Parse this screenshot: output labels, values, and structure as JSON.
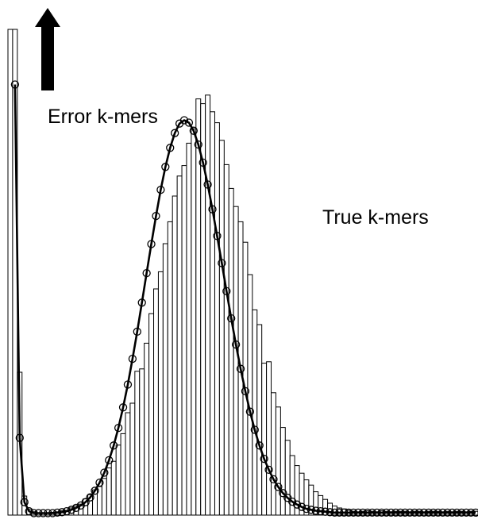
{
  "chart_data": {
    "type": "bar",
    "title": "",
    "xlabel": "",
    "ylabel": "",
    "axes_visible": false,
    "grid": false,
    "xlim": [
      0,
      100
    ],
    "ylim": [
      0,
      100
    ],
    "histogram": {
      "name": "",
      "x": [
        0,
        1,
        2,
        3,
        4,
        5,
        6,
        7,
        8,
        9,
        10,
        11,
        12,
        13,
        14,
        15,
        16,
        17,
        18,
        19,
        20,
        21,
        22,
        23,
        24,
        25,
        26,
        27,
        28,
        29,
        30,
        31,
        32,
        33,
        34,
        35,
        36,
        37,
        38,
        39,
        40,
        41,
        42,
        43,
        44,
        45,
        46,
        47,
        48,
        49,
        50,
        51,
        52,
        53,
        54,
        55,
        56,
        57,
        58,
        59,
        60,
        61,
        62,
        63,
        64,
        65,
        66,
        67,
        68,
        69,
        70,
        71,
        72,
        73,
        74,
        75,
        76,
        77,
        78,
        79,
        80,
        81,
        82,
        83,
        84,
        85,
        86,
        87,
        88,
        89,
        90,
        91,
        92,
        93,
        94,
        95,
        96,
        97,
        98,
        99
      ],
      "values": [
        102,
        102,
        30,
        4,
        1.2,
        0.7,
        0.5,
        0.5,
        0.5,
        0.6,
        0.7,
        0.9,
        1.0,
        1.5,
        1.9,
        2.3,
        3.4,
        4.3,
        5.3,
        6.0,
        7.7,
        9.9,
        11.3,
        14.7,
        17.1,
        21.5,
        23.5,
        30.2,
        30.7,
        36.1,
        42.3,
        47.5,
        51.1,
        57.0,
        61.6,
        67.0,
        71.2,
        73.4,
        78.1,
        81.1,
        87.4,
        86.4,
        88.2,
        84.7,
        82.4,
        78.7,
        73.6,
        68.6,
        64.8,
        61.6,
        57.3,
        50.5,
        43.1,
        40.0,
        31.9,
        32.2,
        25.7,
        22.7,
        18.4,
        15.7,
        12.5,
        10.4,
        8.8,
        7.4,
        6.3,
        4.9,
        4.1,
        3.3,
        2.5,
        1.9,
        1.5,
        1.3,
        1.0,
        0.8,
        0.7,
        0.8,
        0.9,
        0.8,
        0.7,
        0.9,
        0.8,
        0.7,
        0.8,
        0.8,
        0.8,
        0.7,
        0.8,
        0.8,
        0.7,
        0.8,
        0.8,
        0.8,
        0.7,
        0.8,
        0.7,
        0.8,
        0.8,
        0.7,
        0.8,
        0.8
      ]
    },
    "fit": {
      "name": "",
      "x": [
        1,
        2,
        3,
        4,
        5,
        6,
        7,
        8,
        9,
        10,
        11,
        12,
        13,
        14,
        15,
        16,
        17,
        18,
        19,
        20,
        21,
        22,
        23,
        24,
        25,
        26,
        27,
        28,
        29,
        30,
        31,
        32,
        33,
        34,
        35,
        36,
        37,
        38,
        39,
        40,
        41,
        42,
        43,
        44,
        45,
        46,
        47,
        48,
        49,
        50,
        51,
        52,
        53,
        54,
        55,
        56,
        57,
        58,
        59,
        60,
        61,
        62,
        63,
        64,
        65,
        66,
        67,
        68,
        69,
        70,
        71,
        72,
        73,
        74,
        75,
        76,
        77,
        78,
        79,
        80,
        81,
        82,
        83,
        84,
        85,
        86,
        87,
        88,
        89,
        90,
        91,
        92,
        93,
        94,
        95,
        96,
        97,
        98,
        99
      ],
      "values": [
        90,
        15.8,
        2.3,
        0.4,
        0,
        0,
        0,
        0,
        0,
        0.1,
        0.2,
        0.4,
        0.7,
        1.1,
        1.6,
        2.3,
        3.3,
        4.7,
        6.4,
        8.5,
        11.1,
        14.2,
        17.9,
        22.2,
        27.0,
        32.4,
        38.1,
        44.2,
        50.4,
        56.5,
        62.4,
        67.9,
        72.7,
        76.7,
        79.8,
        81.8,
        82.5,
        82.0,
        80.3,
        77.4,
        73.6,
        69.0,
        63.8,
        58.2,
        52.5,
        46.6,
        40.9,
        35.4,
        30.3,
        25.6,
        21.3,
        17.5,
        14.2,
        11.4,
        9.1,
        7.1,
        5.5,
        4.2,
        3.2,
        2.4,
        1.8,
        1.3,
        0.9,
        0.7,
        0.5,
        0.4,
        0.3,
        0.2,
        0.1,
        0.1,
        0.1,
        0.1,
        0.1,
        0.1,
        0.1,
        0.1,
        0.1,
        0.1,
        0.1,
        0.1,
        0.1,
        0.1,
        0.1,
        0.1,
        0.1,
        0.1,
        0.1,
        0.1,
        0.1,
        0.1,
        0.1,
        0.1,
        0.1,
        0.1,
        0.1,
        0.1,
        0.1,
        0.1,
        0.1
      ]
    },
    "annotations": [
      {
        "text": "Error k-mers",
        "arrow": "up"
      },
      {
        "text": "True k-mers"
      }
    ]
  }
}
